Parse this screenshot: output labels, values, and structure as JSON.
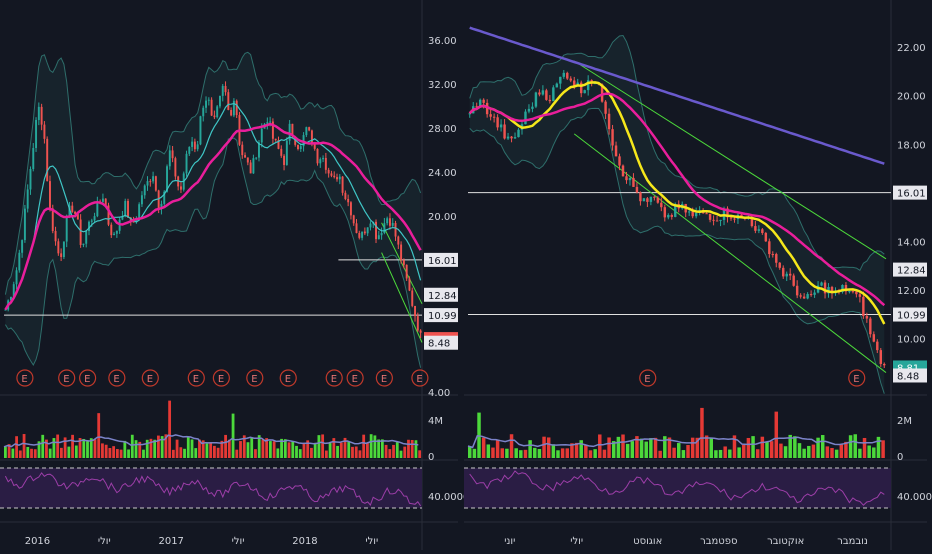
{
  "colors": {
    "background": "#131722",
    "panel_border": "#2a2e39",
    "up": "#26a69a",
    "down": "#ef5350",
    "ma_magenta": "#e91e9b",
    "ma_yellow": "#f5e71b",
    "ma_cyan": "#3fc6c6",
    "ma_purple": "#6a5acd",
    "channel": "#4cd93b",
    "bands": "#2e6e6b",
    "hline": "#e0e0e0",
    "rsi_line": "#9c3ea8",
    "rsi_bg": "#2a1d44",
    "vol_up": "#4cd93b",
    "vol_down": "#e53935",
    "vol_ma": "#7b83c9"
  },
  "chart_data": [
    {
      "type": "candlestick",
      "panel": "left",
      "title": "",
      "y_ticks": [
        "36.00",
        "32.00",
        "28.00",
        "24.00",
        "20.00",
        "16.00",
        "12.84",
        "10.99",
        "8.81",
        "8.48",
        "4.00"
      ],
      "ylim": [
        4,
        38
      ],
      "x_ticks": [
        "2016",
        "יולי",
        "2017",
        "יולי",
        "2018",
        "יולי"
      ],
      "horizontal_lines": [
        {
          "value": 10.99,
          "label": "10.99"
        },
        {
          "value": 16.01,
          "label": "16.01"
        }
      ],
      "price_labels": [
        {
          "value": 16.01,
          "label": "16.01",
          "style": "white"
        },
        {
          "value": 12.84,
          "label": "12.84",
          "style": "white"
        },
        {
          "value": 10.99,
          "label": "10.99",
          "style": "white"
        },
        {
          "value": 8.81,
          "label": "8.81",
          "style": "red"
        },
        {
          "value": 8.48,
          "label": "8.48",
          "style": "white"
        }
      ],
      "close_series": [
        11.5,
        13,
        15,
        18,
        22,
        26,
        30,
        28,
        21,
        18,
        16,
        19,
        21,
        20,
        17,
        19,
        20,
        21,
        22,
        19,
        18,
        20,
        21,
        19,
        20,
        22,
        23,
        24,
        21,
        22,
        26,
        24,
        22,
        25,
        27,
        26,
        30,
        31,
        28,
        30,
        32,
        29,
        31,
        26,
        25,
        24,
        26,
        28,
        29,
        27,
        26,
        25,
        28,
        27,
        26,
        28,
        27,
        25,
        26,
        24,
        23,
        24,
        22,
        21,
        19,
        18,
        19,
        20,
        18,
        19,
        20,
        19,
        17,
        15,
        13,
        11,
        9
      ],
      "earnings_markers": [
        "E",
        "E",
        "E",
        "E",
        "E",
        "E",
        "E",
        "E",
        "E",
        "E",
        "E",
        "E",
        "E"
      ],
      "volume_axis": [
        "4M",
        "0"
      ],
      "rsi_axis": [
        "40.0000"
      ]
    },
    {
      "type": "candlestick",
      "panel": "right",
      "title": "",
      "y_ticks": [
        "22.00",
        "20.00",
        "18.00",
        "16.01",
        "14.00",
        "12.84",
        "12.00",
        "10.99",
        "10.00",
        "8.81",
        "8.48"
      ],
      "ylim": [
        7.8,
        23.2
      ],
      "x_ticks": [
        "יוני",
        "יולי",
        "אוגוסט",
        "ספטמבר",
        "אוקטובר",
        "נובמבר"
      ],
      "horizontal_lines": [
        {
          "value": 10.99,
          "label": "10.99"
        },
        {
          "value": 16.01,
          "label": "16.01"
        }
      ],
      "price_labels": [
        {
          "value": 16.01,
          "label": "16.01",
          "style": "white"
        },
        {
          "value": 12.84,
          "label": "12.84",
          "style": "white"
        },
        {
          "value": 10.99,
          "label": "10.99",
          "style": "white"
        },
        {
          "value": 8.81,
          "label": "8.81",
          "style": "teal"
        },
        {
          "value": 8.48,
          "label": "8.48",
          "style": "white"
        }
      ],
      "close_series": [
        19.2,
        19.8,
        19.5,
        19.0,
        18.6,
        18.0,
        18.5,
        19.2,
        19.8,
        20.3,
        19.9,
        20.5,
        21.0,
        20.6,
        20.2,
        20.8,
        20.4,
        19.5,
        18.0,
        17.0,
        16.5,
        16.0,
        15.5,
        15.8,
        15.2,
        15.0,
        15.4,
        15.3,
        15.0,
        15.2,
        15.1,
        15.0,
        15.2,
        15.1,
        14.9,
        15.0,
        14.5,
        14.0,
        13.5,
        12.8,
        12.5,
        12.0,
        11.5,
        11.8,
        12.2,
        12.0,
        11.8,
        12.1,
        11.9,
        11.5,
        10.5,
        9.5,
        8.8
      ],
      "earnings_markers": [
        "E",
        "E"
      ],
      "volume_axis": [
        "2M",
        "0"
      ],
      "rsi_axis": [
        "40.0000"
      ]
    }
  ]
}
